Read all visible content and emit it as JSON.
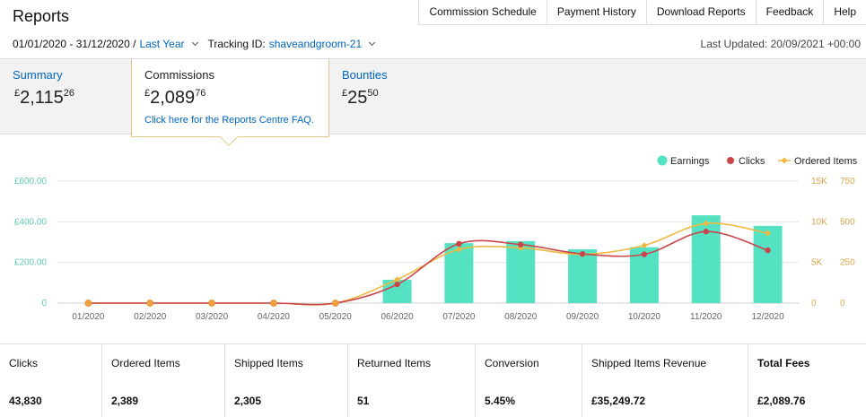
{
  "header": {
    "title": "Reports",
    "nav": [
      "Commission Schedule",
      "Payment History",
      "Download Reports",
      "Feedback",
      "Help"
    ],
    "date_range": "01/01/2020 - 31/12/2020 /",
    "date_preset": "Last Year",
    "tracking_label": "Tracking ID:",
    "tracking_id": "shaveandgroom-21",
    "last_updated": "Last Updated: 20/09/2021 +00:00"
  },
  "summary": {
    "tabs": [
      {
        "label": "Summary",
        "currency": "£",
        "whole": "2,115",
        "cents": "26"
      },
      {
        "label": "Commissions",
        "currency": "£",
        "whole": "2,089",
        "cents": "76"
      },
      {
        "label": "Bounties",
        "currency": "£",
        "whole": "25",
        "cents": "50"
      }
    ],
    "faq_link": "Click here for the Reports Centre FAQ."
  },
  "chart_data": {
    "type": "bar",
    "categories": [
      "01/2020",
      "02/2020",
      "03/2020",
      "04/2020",
      "05/2020",
      "06/2020",
      "07/2020",
      "08/2020",
      "09/2020",
      "10/2020",
      "11/2020",
      "12/2020"
    ],
    "series": [
      {
        "name": "Earnings",
        "type": "bar",
        "axis": "left",
        "color": "#55e2c3",
        "values": [
          0,
          0,
          0,
          0,
          0,
          115,
          295,
          305,
          265,
          275,
          432,
          380
        ]
      },
      {
        "name": "Clicks",
        "type": "line",
        "axis": "right1",
        "color": "#c9454a",
        "values": [
          0,
          0,
          0,
          0,
          0,
          2300,
          7300,
          7200,
          6050,
          6000,
          8800,
          6500
        ]
      },
      {
        "name": "Ordered Items",
        "type": "line",
        "axis": "right2",
        "color": "#f0b840",
        "values": [
          0,
          0,
          0,
          0,
          0,
          145,
          330,
          340,
          300,
          355,
          490,
          430
        ]
      }
    ],
    "left_axis": {
      "ticks": [
        "0",
        "200.00",
        "400.00",
        "600.00"
      ],
      "tick_values": [
        0,
        200,
        400,
        600
      ],
      "currency": "£",
      "ylim": [
        0,
        600
      ]
    },
    "right_axis_1": {
      "ticks": [
        "0",
        "5K",
        "10K",
        "15K"
      ],
      "ylim": [
        0,
        15000
      ]
    },
    "right_axis_2": {
      "ticks": [
        "0",
        "250",
        "500",
        "750"
      ],
      "ylim": [
        0,
        750
      ]
    },
    "legend_position": "top-right",
    "grid": true
  },
  "stats": [
    {
      "label": "Clicks",
      "value": "43,830"
    },
    {
      "label": "Ordered Items",
      "value": "2,389"
    },
    {
      "label": "Shipped Items",
      "value": "2,305"
    },
    {
      "label": "Returned Items",
      "value": "51"
    },
    {
      "label": "Conversion",
      "value": "5.45%"
    },
    {
      "label": "Shipped Items Revenue",
      "value": "£35,249.72"
    },
    {
      "label": "Total Fees",
      "value": "£2,089.76"
    }
  ]
}
